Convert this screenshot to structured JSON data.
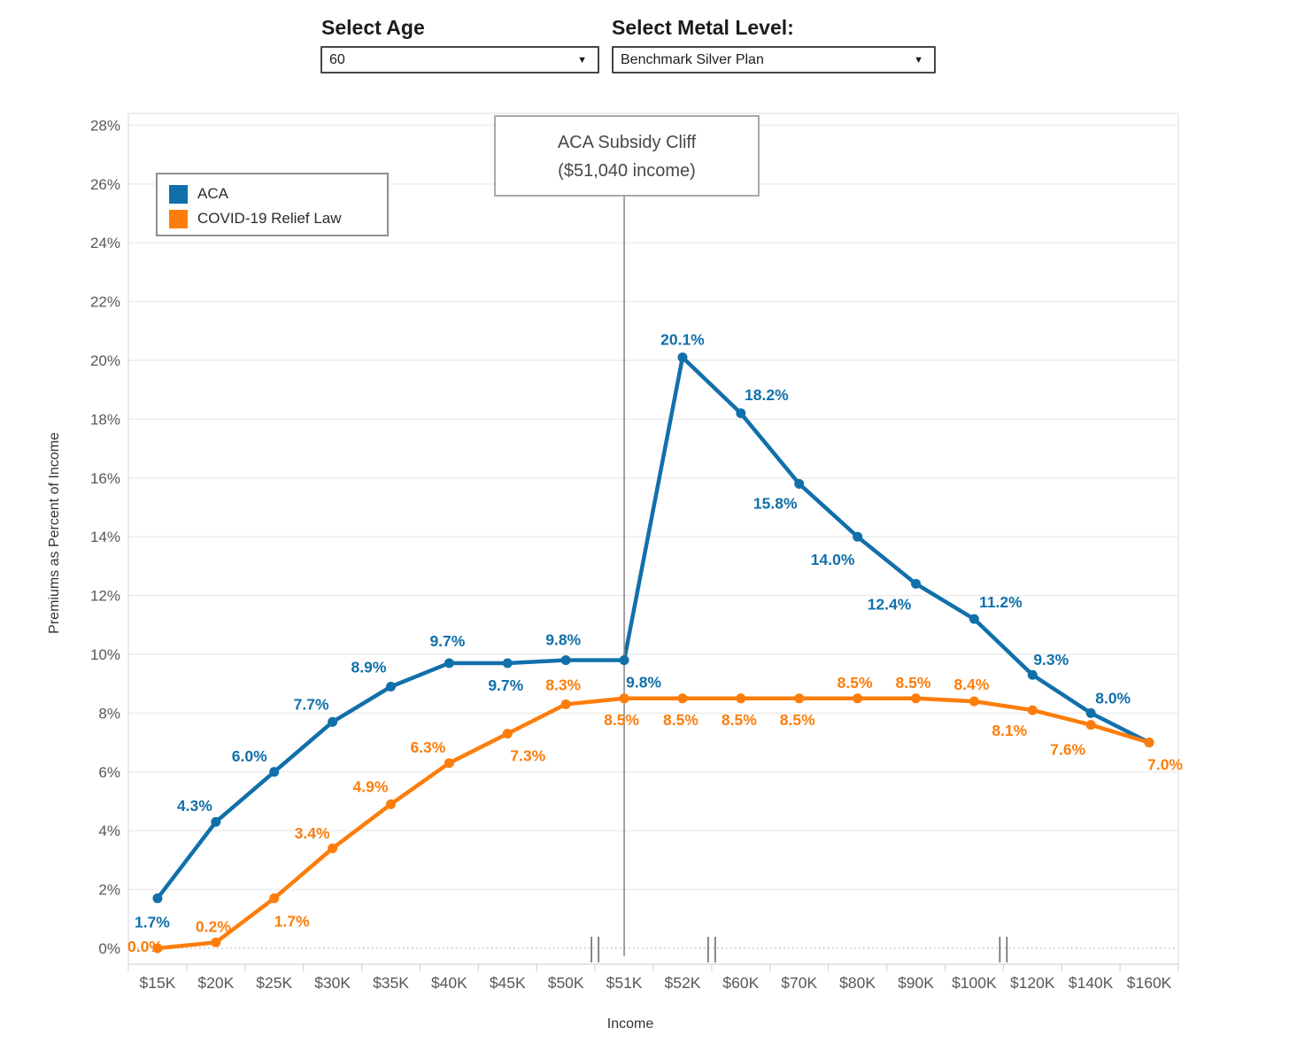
{
  "controls": {
    "age_label": "Select Age",
    "age_value": "60",
    "metal_label": "Select Metal Level:",
    "metal_value": "Benchmark Silver Plan",
    "dropdown_arrow": "▼"
  },
  "legend": {
    "items": [
      {
        "label": "ACA",
        "color": "#1170aa"
      },
      {
        "label": "COVID-19 Relief Law",
        "color": "#fc7d0b"
      }
    ]
  },
  "annotation": {
    "line1": "ACA Subsidy Cliff",
    "line2": "($51,040 income)",
    "anchor_category": "$51K"
  },
  "chart_data": {
    "type": "line",
    "title": "",
    "xlabel": "Income",
    "ylabel": "Premiums as Percent of Income",
    "ylim": [
      0,
      28
    ],
    "ytick_step": 2,
    "ytick_suffix": "%",
    "grid": true,
    "zero_line_style": "dotted",
    "legend_position": "top-left",
    "categories": [
      "$15K",
      "$20K",
      "$25K",
      "$30K",
      "$35K",
      "$40K",
      "$45K",
      "$50K",
      "$51K",
      "$52K",
      "$60K",
      "$70K",
      "$80K",
      "$90K",
      "$100K",
      "$120K",
      "$140K",
      "$160K"
    ],
    "axis_breaks_between": [
      [
        "$50K",
        "$51K"
      ],
      [
        "$52K",
        "$60K"
      ],
      [
        "$100K",
        "$120K"
      ]
    ],
    "series": [
      {
        "name": "ACA",
        "color": "#1170aa",
        "values": [
          1.7,
          4.3,
          6.0,
          7.7,
          8.9,
          9.7,
          9.7,
          9.8,
          9.8,
          20.1,
          18.2,
          15.8,
          14.0,
          12.4,
          11.2,
          9.3,
          8.0,
          7.0
        ],
        "labels": [
          "1.7%",
          "4.3%",
          "6.0%",
          "7.7%",
          "8.9%",
          "9.7%",
          "9.7%",
          "9.8%",
          "9.8%",
          "20.1%",
          "18.2%",
          "15.8%",
          "14.0%",
          "12.4%",
          "11.2%",
          "9.3%",
          "8.0%",
          ""
        ],
        "label_offsets": [
          [
            -6,
            27
          ],
          [
            -24,
            -18
          ],
          [
            -28,
            -18
          ],
          [
            -24,
            -20
          ],
          [
            -25,
            -22
          ],
          [
            -2,
            -25
          ],
          [
            -2,
            25
          ],
          [
            -3,
            -23
          ],
          [
            22,
            25
          ],
          [
            0,
            -20
          ],
          [
            29,
            -21
          ],
          [
            -27,
            22
          ],
          [
            -28,
            26
          ],
          [
            -30,
            23
          ],
          [
            30,
            -19
          ],
          [
            21,
            -17
          ],
          [
            25,
            -17
          ],
          [
            0,
            0
          ]
        ]
      },
      {
        "name": "COVID-19 Relief Law",
        "color": "#fc7d0b",
        "values": [
          0.0,
          0.2,
          1.7,
          3.4,
          4.9,
          6.3,
          7.3,
          8.3,
          8.5,
          8.5,
          8.5,
          8.5,
          8.5,
          8.5,
          8.4,
          8.1,
          7.6,
          7.0
        ],
        "labels": [
          "0.0%",
          "0.2%",
          "1.7%",
          "3.4%",
          "4.9%",
          "6.3%",
          "7.3%",
          "8.3%",
          "8.5%",
          "8.5%",
          "8.5%",
          "8.5%",
          "8.5%",
          "8.5%",
          "8.4%",
          "8.1%",
          "7.6%",
          "7.0%"
        ],
        "label_offsets": [
          [
            -14,
            -2
          ],
          [
            -3,
            -18
          ],
          [
            20,
            26
          ],
          [
            -23,
            -17
          ],
          [
            -23,
            -20
          ],
          [
            -24,
            -18
          ],
          [
            23,
            25
          ],
          [
            -3,
            -22
          ],
          [
            -3,
            24
          ],
          [
            -2,
            24
          ],
          [
            -2,
            24
          ],
          [
            -2,
            24
          ],
          [
            -3,
            -18
          ],
          [
            -3,
            -18
          ],
          [
            -3,
            -19
          ],
          [
            -26,
            23
          ],
          [
            -26,
            28
          ],
          [
            18,
            25
          ]
        ]
      }
    ]
  }
}
